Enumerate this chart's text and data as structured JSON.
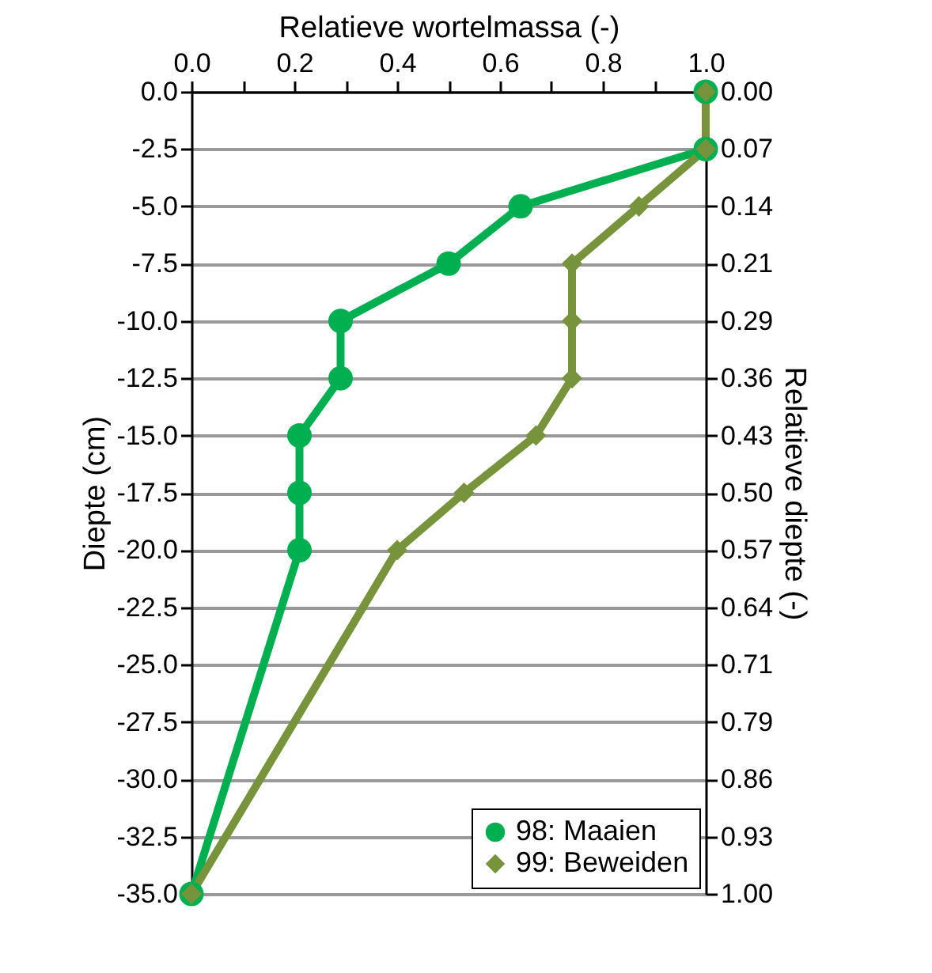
{
  "chart_data": {
    "type": "line",
    "xlabel": "Relatieve wortelmassa (-)",
    "ylabel": "Diepte (cm)",
    "y2label": "Relatieve diepte (-)",
    "series": [
      {
        "name": "98: Maaien",
        "color": "#00b050",
        "marker": "circle",
        "x": [
          1.0,
          1.0,
          0.64,
          0.5,
          0.29,
          0.29,
          0.21,
          0.21,
          0.21,
          0.0
        ],
        "values": [
          0,
          -2.5,
          -5,
          -7.5,
          -10,
          -12.5,
          -15,
          -17.5,
          -20,
          -35
        ]
      },
      {
        "name": "99: Beweiden",
        "color": "#77933c",
        "marker": "diamond",
        "x": [
          1.0,
          1.0,
          0.87,
          0.74,
          0.74,
          0.74,
          0.67,
          0.53,
          0.4,
          0.0
        ],
        "values": [
          0,
          -2.5,
          -5,
          -7.5,
          -10,
          -12.5,
          -15,
          -17.5,
          -20,
          -35
        ]
      }
    ],
    "xlim": [
      0,
      1.0
    ],
    "xticks": [
      {
        "value": 0,
        "label": "0.0"
      },
      {
        "value": 0.1,
        "label": null
      },
      {
        "value": 0.2,
        "label": "0.2"
      },
      {
        "value": 0.3,
        "label": null
      },
      {
        "value": 0.4,
        "label": "0.4"
      },
      {
        "value": 0.5,
        "label": null
      },
      {
        "value": 0.6,
        "label": "0.6"
      },
      {
        "value": 0.7,
        "label": null
      },
      {
        "value": 0.8,
        "label": "0.8"
      },
      {
        "value": 0.9,
        "label": null
      },
      {
        "value": 1.0,
        "label": "1.0"
      }
    ],
    "ylim": [
      -35,
      0
    ],
    "yticks": [
      {
        "value": 0,
        "label": "0.0"
      },
      {
        "value": -2.5,
        "label": "-2.5"
      },
      {
        "value": -5,
        "label": "-5.0"
      },
      {
        "value": -7.5,
        "label": "-7.5"
      },
      {
        "value": -10,
        "label": "-10.0"
      },
      {
        "value": -12.5,
        "label": "-12.5"
      },
      {
        "value": -15,
        "label": "-15.0"
      },
      {
        "value": -17.5,
        "label": "-17.5"
      },
      {
        "value": -20,
        "label": "-20.0"
      },
      {
        "value": -22.5,
        "label": "-22.5"
      },
      {
        "value": -25,
        "label": "-25.0"
      },
      {
        "value": -27.5,
        "label": "-27.5"
      },
      {
        "value": -30,
        "label": "-30.0"
      },
      {
        "value": -32.5,
        "label": "-32.5"
      },
      {
        "value": -35,
        "label": "-35.0"
      }
    ],
    "y2lim": [
      1.0,
      0.0
    ],
    "y2ticks": [
      {
        "value": 0,
        "label": "0.00"
      },
      {
        "value": 0.0714,
        "label": "0.07"
      },
      {
        "value": 0.1429,
        "label": "0.14"
      },
      {
        "value": 0.2143,
        "label": "0.21"
      },
      {
        "value": 0.2857,
        "label": "0.29"
      },
      {
        "value": 0.3571,
        "label": "0.36"
      },
      {
        "value": 0.4286,
        "label": "0.43"
      },
      {
        "value": 0.5,
        "label": "0.50"
      },
      {
        "value": 0.5714,
        "label": "0.57"
      },
      {
        "value": 0.6429,
        "label": "0.64"
      },
      {
        "value": 0.7143,
        "label": "0.71"
      },
      {
        "value": 0.7857,
        "label": "0.79"
      },
      {
        "value": 0.8571,
        "label": "0.86"
      },
      {
        "value": 0.9286,
        "label": "0.93"
      },
      {
        "value": 1.0,
        "label": "1.00"
      }
    ],
    "grid": "y",
    "legend": "bottom right",
    "line_style": "solid"
  }
}
